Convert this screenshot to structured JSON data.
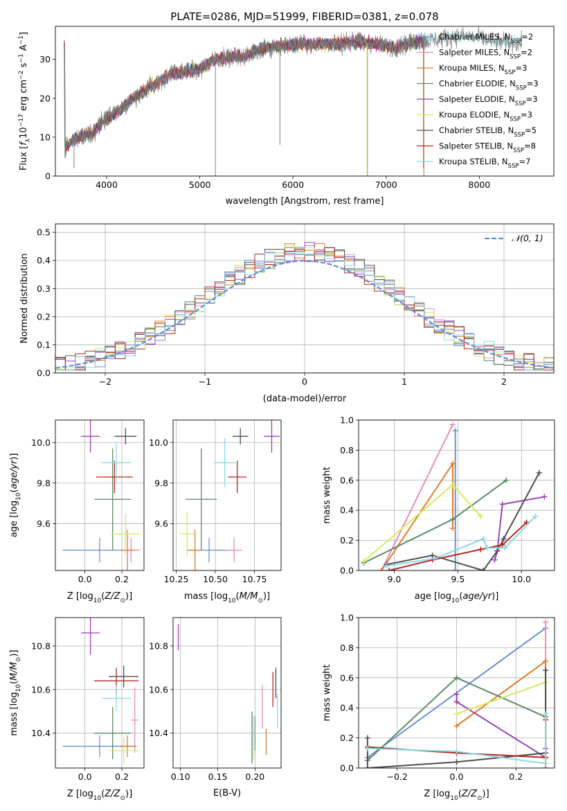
{
  "title": "PLATE=0286, MJD=51999, FIBERID=0381, z=0.078",
  "palette": {
    "Chabrier MILES": "#6a8fd6",
    "Salpeter MILES": "#e98bbd",
    "Kroupa MILES": "#e07c2a",
    "Chabrier ELODIE": "#5a8a64",
    "Salpeter ELODIE": "#9a3fb8",
    "Kroupa ELODIE": "#d4ea5c",
    "Chabrier STELIB": "#4d4d4d",
    "Salpeter STELIB": "#b3261e",
    "Kroupa STELIB": "#8ad8e6"
  },
  "chart_data": [
    {
      "id": "spectrum",
      "type": "line",
      "title": "PLATE=0286, MJD=51999, FIBERID=0381, z=0.078",
      "xlabel": "wavelength [Angstrom, rest frame]",
      "ylabel": "Flux [fλ10⁻¹⁷ erg cm⁻² s⁻¹ A⁻¹]",
      "xlim": [
        3450,
        8800
      ],
      "ylim": [
        0,
        38.5
      ],
      "xticks": [
        4000,
        5000,
        6000,
        7000,
        8000
      ],
      "yticks": [
        0,
        10,
        20,
        30
      ],
      "grid": false,
      "legend_position": "right",
      "continuum": [
        [
          3550,
          7
        ],
        [
          3650,
          9.5
        ],
        [
          3750,
          10.5
        ],
        [
          3850,
          11
        ],
        [
          3950,
          14
        ],
        [
          4050,
          15.5
        ],
        [
          4150,
          17
        ],
        [
          4250,
          19.5
        ],
        [
          4400,
          22
        ],
        [
          4550,
          24
        ],
        [
          4700,
          26.5
        ],
        [
          4850,
          27
        ],
        [
          5000,
          27.5
        ],
        [
          5150,
          30
        ],
        [
          5300,
          30.5
        ],
        [
          5500,
          31
        ],
        [
          5700,
          33
        ],
        [
          5900,
          33.5
        ],
        [
          6100,
          34
        ],
        [
          6300,
          34
        ],
        [
          6500,
          34
        ],
        [
          6700,
          34.5
        ],
        [
          6900,
          34
        ],
        [
          7100,
          33
        ],
        [
          7300,
          34.5
        ],
        [
          7500,
          35
        ],
        [
          7800,
          36
        ],
        [
          8000,
          35.5
        ],
        [
          8200,
          34.5
        ],
        [
          8350,
          34.5
        ],
        [
          8450,
          34
        ]
      ],
      "absorption_lines": [
        [
          3650,
          2
        ],
        [
          5168,
          0
        ],
        [
          5860,
          8
        ],
        [
          6800,
          0
        ],
        [
          7400,
          2
        ]
      ],
      "series": [
        {
          "name": "Chabrier MILES, N_SSP=2",
          "label_main": "Chabrier MILES, N",
          "label_sub": "SSP",
          "label_tail": "=2"
        },
        {
          "name": "Salpeter MILES, N_SSP=2",
          "label_main": "Salpeter MILES, N",
          "label_sub": "SSP",
          "label_tail": "=2"
        },
        {
          "name": "Kroupa MILES, N_SSP=3",
          "label_main": "Kroupa MILES, N",
          "label_sub": "SSP",
          "label_tail": "=3"
        },
        {
          "name": "Chabrier ELODIE, N_SSP=3",
          "label_main": "Chabrier ELODIE, N",
          "label_sub": "SSP",
          "label_tail": "=3"
        },
        {
          "name": "Salpeter ELODIE, N_SSP=3",
          "label_main": "Salpeter ELODIE, N",
          "label_sub": "SSP",
          "label_tail": "=3"
        },
        {
          "name": "Kroupa ELODIE, N_SSP=3",
          "label_main": "Kroupa ELODIE, N",
          "label_sub": "SSP",
          "label_tail": "=3"
        },
        {
          "name": "Chabrier STELIB, N_SSP=5",
          "label_main": "Chabrier STELIB, N",
          "label_sub": "SSP",
          "label_tail": "=5"
        },
        {
          "name": "Salpeter STELIB, N_SSP=8",
          "label_main": "Salpeter STELIB, N",
          "label_sub": "SSP",
          "label_tail": "=8"
        },
        {
          "name": "Kroupa STELIB, N_SSP=7",
          "label_main": "Kroupa STELIB, N",
          "label_sub": "SSP",
          "label_tail": "=7"
        }
      ]
    },
    {
      "id": "residuals",
      "type": "line",
      "xlabel": "(data-model)/error",
      "ylabel": "Normed distribution",
      "xlim": [
        -2.5,
        2.5
      ],
      "ylim": [
        0,
        0.53
      ],
      "xticks": [
        -2,
        -1,
        0,
        1,
        2
      ],
      "yticks": [
        0.0,
        0.1,
        0.2,
        0.3,
        0.4,
        0.5
      ],
      "grid": true,
      "bin_width": 0.1,
      "bin_start": -2.5,
      "bins": 50,
      "reference_curve": "𝒩(0,1)",
      "reference_label": "𝒩(0, 1)",
      "legend_position": "top-right"
    },
    {
      "id": "z-age",
      "type": "scatter",
      "xlabel": "Z [log10(Z/Z⊙)]",
      "ylabel": "age [log10(age/yr)]",
      "xlim": [
        -0.16,
        0.32
      ],
      "ylim": [
        9.37,
        10.11
      ],
      "xticks": [
        0.0,
        0.2
      ],
      "yticks": [
        9.6,
        9.8,
        10.0
      ],
      "grid": true,
      "points": [
        {
          "model": "Chabrier MILES",
          "x": 0.08,
          "y": 9.47,
          "xerr": 0.2,
          "yerr": 0.06
        },
        {
          "model": "Salpeter MILES",
          "x": 0.25,
          "y": 9.47,
          "xerr": 0.05,
          "yerr": 0.06
        },
        {
          "model": "Kroupa MILES",
          "x": 0.23,
          "y": 9.47,
          "xerr": 0.04,
          "yerr": 0.1
        },
        {
          "model": "Chabrier ELODIE",
          "x": 0.15,
          "y": 9.72,
          "xerr": 0.1,
          "yerr": 0.25
        },
        {
          "model": "Salpeter ELODIE",
          "x": 0.03,
          "y": 10.03,
          "xerr": 0.05,
          "yerr": 0.08
        },
        {
          "model": "Kroupa ELODIE",
          "x": 0.22,
          "y": 9.55,
          "xerr": 0.08,
          "yerr": 0.1
        },
        {
          "model": "Chabrier STELIB",
          "x": 0.22,
          "y": 10.03,
          "xerr": 0.06,
          "yerr": 0.04
        },
        {
          "model": "Salpeter STELIB",
          "x": 0.16,
          "y": 9.83,
          "xerr": 0.1,
          "yerr": 0.08
        },
        {
          "model": "Kroupa STELIB",
          "x": 0.17,
          "y": 9.9,
          "xerr": 0.08,
          "yerr": 0.1
        }
      ]
    },
    {
      "id": "mass-age",
      "type": "scatter",
      "xlabel": "mass [log10(M/M⊙)]",
      "ylabel": "",
      "xlim": [
        10.23,
        10.92
      ],
      "ylim": [
        9.37,
        10.11
      ],
      "xticks": [
        10.25,
        10.5,
        10.75
      ],
      "yticks": [
        9.6,
        9.8,
        10.0
      ],
      "grid": true,
      "points": [
        {
          "model": "Chabrier MILES",
          "x": 10.46,
          "y": 9.47,
          "xerr": 0.14,
          "yerr": 0.06
        },
        {
          "model": "Salpeter MILES",
          "x": 10.62,
          "y": 9.47,
          "xerr": 0.05,
          "yerr": 0.06
        },
        {
          "model": "Kroupa MILES",
          "x": 10.37,
          "y": 9.47,
          "xerr": 0.04,
          "yerr": 0.1
        },
        {
          "model": "Chabrier ELODIE",
          "x": 10.41,
          "y": 9.72,
          "xerr": 0.1,
          "yerr": 0.25
        },
        {
          "model": "Salpeter ELODIE",
          "x": 10.86,
          "y": 10.03,
          "xerr": 0.05,
          "yerr": 0.08
        },
        {
          "model": "Kroupa ELODIE",
          "x": 10.32,
          "y": 9.55,
          "xerr": 0.05,
          "yerr": 0.11
        },
        {
          "model": "Chabrier STELIB",
          "x": 10.66,
          "y": 10.03,
          "xerr": 0.05,
          "yerr": 0.04
        },
        {
          "model": "Salpeter STELIB",
          "x": 10.64,
          "y": 9.83,
          "xerr": 0.06,
          "yerr": 0.08
        },
        {
          "model": "Kroupa STELIB",
          "x": 10.56,
          "y": 9.9,
          "xerr": 0.07,
          "yerr": 0.12
        }
      ]
    },
    {
      "id": "weights-age",
      "type": "line",
      "xlabel": "age [log10(age/yr)]",
      "ylabel": "mass weight",
      "xlim": [
        8.72,
        10.26
      ],
      "ylim": [
        0,
        1.0
      ],
      "xticks": [
        9.0,
        9.5,
        10.0
      ],
      "yticks": [
        0.0,
        0.2,
        0.4,
        0.6,
        0.8,
        1.0
      ],
      "grid": true,
      "series": [
        {
          "model": "Chabrier MILES",
          "points": [
            [
              9.48,
              0.0
            ],
            [
              9.48,
              0.93
            ]
          ]
        },
        {
          "model": "Salpeter MILES",
          "points": [
            [
              8.9,
              0.0
            ],
            [
              9.46,
              0.97
            ]
          ]
        },
        {
          "model": "Kroupa MILES",
          "points": [
            [
              8.9,
              0.0
            ],
            [
              9.46,
              0.71
            ],
            [
              9.46,
              0.28
            ]
          ]
        },
        {
          "model": "Chabrier ELODIE",
          "points": [
            [
              8.76,
              0.05
            ],
            [
              9.46,
              0.34
            ],
            [
              9.88,
              0.6
            ]
          ]
        },
        {
          "model": "Salpeter ELODIE",
          "points": [
            [
              9.79,
              0.07
            ],
            [
              9.81,
              0.13
            ],
            [
              9.85,
              0.44
            ],
            [
              10.18,
              0.49
            ]
          ]
        },
        {
          "model": "Kroupa ELODIE",
          "points": [
            [
              8.76,
              0.06
            ],
            [
              9.46,
              0.57
            ],
            [
              9.68,
              0.36
            ]
          ]
        },
        {
          "model": "Chabrier STELIB",
          "points": [
            [
              8.94,
              0.04
            ],
            [
              9.3,
              0.1
            ],
            [
              9.7,
              0.0
            ],
            [
              9.81,
              0.13
            ],
            [
              9.86,
              0.21
            ],
            [
              10.14,
              0.65
            ]
          ]
        },
        {
          "model": "Salpeter STELIB",
          "points": [
            [
              8.96,
              0.0
            ],
            [
              9.3,
              0.07
            ],
            [
              9.68,
              0.14
            ],
            [
              9.85,
              0.17
            ],
            [
              10.04,
              0.32
            ]
          ]
        },
        {
          "model": "Kroupa STELIB",
          "points": [
            [
              8.94,
              0.03
            ],
            [
              9.32,
              0.08
            ],
            [
              9.7,
              0.21
            ],
            [
              9.73,
              0.15
            ],
            [
              9.87,
              0.15
            ],
            [
              10.11,
              0.36
            ]
          ]
        }
      ]
    },
    {
      "id": "z-mass",
      "type": "scatter",
      "xlabel": "Z [log10(Z/Z⊙)]",
      "ylabel": "mass [log10(M/M⊙)]",
      "xlim": [
        -0.16,
        0.32
      ],
      "ylim": [
        10.24,
        10.93
      ],
      "xticks": [
        0.0,
        0.2
      ],
      "yticks": [
        10.4,
        10.6,
        10.8
      ],
      "grid": true,
      "points": [
        {
          "model": "Chabrier MILES",
          "x": 0.08,
          "y": 10.34,
          "xerr": 0.2,
          "yerr": 0.05
        },
        {
          "model": "Salpeter MILES",
          "x": 0.27,
          "y": 10.46,
          "xerr": 0.02,
          "yerr": 0.15
        },
        {
          "model": "Kroupa MILES",
          "x": 0.23,
          "y": 10.34,
          "xerr": 0.04,
          "yerr": 0.05
        },
        {
          "model": "Chabrier ELODIE",
          "x": 0.15,
          "y": 10.4,
          "xerr": 0.1,
          "yerr": 0.12
        },
        {
          "model": "Salpeter ELODIE",
          "x": 0.03,
          "y": 10.86,
          "xerr": 0.05,
          "yerr": 0.1
        },
        {
          "model": "Kroupa ELODIE",
          "x": 0.21,
          "y": 10.32,
          "xerr": 0.08,
          "yerr": 0.06
        },
        {
          "model": "Chabrier STELIB",
          "x": 0.21,
          "y": 10.66,
          "xerr": 0.08,
          "yerr": 0.05
        },
        {
          "model": "Salpeter STELIB",
          "x": 0.17,
          "y": 10.64,
          "xerr": 0.12,
          "yerr": 0.06
        },
        {
          "model": "Kroupa STELIB",
          "x": 0.17,
          "y": 10.56,
          "xerr": 0.08,
          "yerr": 0.06
        }
      ]
    },
    {
      "id": "ebv-mass",
      "type": "scatter",
      "xlabel": "E(B-V)",
      "ylabel": "",
      "xlim": [
        0.09,
        0.235
      ],
      "ylim": [
        10.24,
        10.93
      ],
      "xticks": [
        0.1,
        0.15,
        0.2
      ],
      "yticks": [
        10.4,
        10.6,
        10.8
      ],
      "grid": true,
      "points": [
        {
          "model": "Chabrier MILES",
          "x": 0.2,
          "y": 10.4,
          "xerr": 0.0,
          "yerr": 0.08
        },
        {
          "model": "Salpeter MILES",
          "x": 0.21,
          "y": 10.52,
          "xerr": 0.0,
          "yerr": 0.1
        },
        {
          "model": "Kroupa MILES",
          "x": 0.215,
          "y": 10.36,
          "xerr": 0.0,
          "yerr": 0.06
        },
        {
          "model": "Chabrier ELODIE",
          "x": 0.196,
          "y": 10.38,
          "xerr": 0.0,
          "yerr": 0.12
        },
        {
          "model": "Salpeter ELODIE",
          "x": 0.097,
          "y": 10.84,
          "xerr": 0.0,
          "yerr": 0.06
        },
        {
          "model": "Kroupa ELODIE",
          "x": 0.198,
          "y": 10.38,
          "xerr": 0.0,
          "yerr": 0.1
        },
        {
          "model": "Chabrier STELIB",
          "x": 0.228,
          "y": 10.63,
          "xerr": 0.0,
          "yerr": 0.07
        },
        {
          "model": "Salpeter STELIB",
          "x": 0.224,
          "y": 10.6,
          "xerr": 0.0,
          "yerr": 0.08
        },
        {
          "model": "Kroupa STELIB",
          "x": 0.23,
          "y": 10.5,
          "xerr": 0.0,
          "yerr": 0.08
        }
      ]
    },
    {
      "id": "weights-z",
      "type": "line",
      "xlabel": "Z [log10(Z/Z⊙)]",
      "ylabel": "mass weight",
      "xlim": [
        -0.33,
        0.33
      ],
      "ylim": [
        0,
        1.0
      ],
      "xticks": [
        -0.2,
        0.0,
        0.2
      ],
      "yticks": [
        0.0,
        0.2,
        0.4,
        0.6,
        0.8,
        1.0
      ],
      "grid": true,
      "series": [
        {
          "model": "Chabrier MILES",
          "points": [
            [
              -0.3,
              0.07
            ],
            [
              0.3,
              0.93
            ]
          ]
        },
        {
          "model": "Salpeter MILES",
          "points": [
            [
              0.3,
              0.0
            ],
            [
              0.3,
              0.97
            ]
          ]
        },
        {
          "model": "Kroupa MILES",
          "points": [
            [
              0.0,
              0.28
            ],
            [
              0.3,
              0.71
            ],
            [
              0.3,
              0.0
            ]
          ]
        },
        {
          "model": "Chabrier ELODIE",
          "points": [
            [
              -0.3,
              0.05
            ],
            [
              0.0,
              0.6
            ],
            [
              0.3,
              0.34
            ]
          ]
        },
        {
          "model": "Salpeter ELODIE",
          "points": [
            [
              0.0,
              0.49
            ],
            [
              0.0,
              0.44
            ],
            [
              0.3,
              0.07
            ],
            [
              0.3,
              0.13
            ]
          ]
        },
        {
          "model": "Kroupa ELODIE",
          "points": [
            [
              0.0,
              0.36
            ],
            [
              0.3,
              0.57
            ],
            [
              0.3,
              0.06
            ]
          ]
        },
        {
          "model": "Chabrier STELIB",
          "points": [
            [
              -0.3,
              0.2
            ],
            [
              -0.3,
              0.0
            ],
            [
              0.0,
              0.04
            ],
            [
              0.3,
              0.1
            ],
            [
              0.3,
              0.65
            ]
          ]
        },
        {
          "model": "Salpeter STELIB",
          "points": [
            [
              -0.3,
              0.14
            ],
            [
              0.0,
              0.1
            ],
            [
              0.3,
              0.07
            ],
            [
              0.3,
              0.32
            ]
          ]
        },
        {
          "model": "Kroupa STELIB",
          "points": [
            [
              -0.3,
              0.13
            ],
            [
              0.0,
              0.11
            ],
            [
              0.3,
              0.03
            ],
            [
              0.3,
              0.36
            ]
          ]
        }
      ]
    }
  ]
}
